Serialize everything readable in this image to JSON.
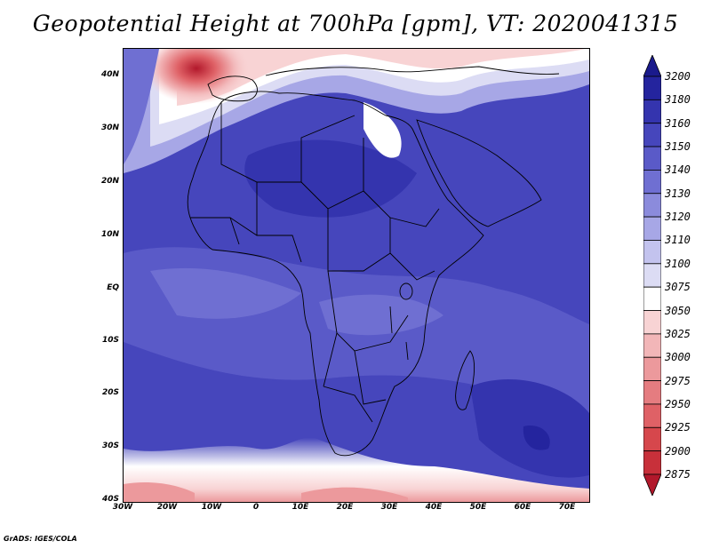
{
  "title": "Geopotential Height at 700hPa [gpm], VT: 2020041315",
  "footer": "GrADS: IGES/COLA",
  "map": {
    "lat_labels": [
      "40N",
      "30N",
      "20N",
      "10N",
      "EQ",
      "10S",
      "20S",
      "30S",
      "40S"
    ],
    "lon_labels": [
      "30W",
      "20W",
      "10W",
      "0",
      "10E",
      "20E",
      "30E",
      "40E",
      "50E",
      "60E",
      "70E"
    ],
    "lat_range": [
      -40,
      45
    ],
    "lon_range": [
      -30,
      75
    ]
  },
  "colorbar": {
    "levels": [
      "2875",
      "2900",
      "2925",
      "2950",
      "2975",
      "3000",
      "3025",
      "3050",
      "3075",
      "3100",
      "3110",
      "3120",
      "3130",
      "3140",
      "3150",
      "3160",
      "3180",
      "3200"
    ],
    "top_label": "3200",
    "colors": [
      "#b2182b",
      "#c8303a",
      "#d6474c",
      "#df6166",
      "#e57c80",
      "#ec999c",
      "#f2b6b8",
      "#f8d3d4",
      "#ffffff",
      "#dcdcf4",
      "#c3c3ee",
      "#a7a7e6",
      "#8b8bdc",
      "#6f6fd2",
      "#5a5ac8",
      "#4646bc",
      "#3434ae",
      "#24249e"
    ],
    "top_color": "#1a1a8c"
  }
}
